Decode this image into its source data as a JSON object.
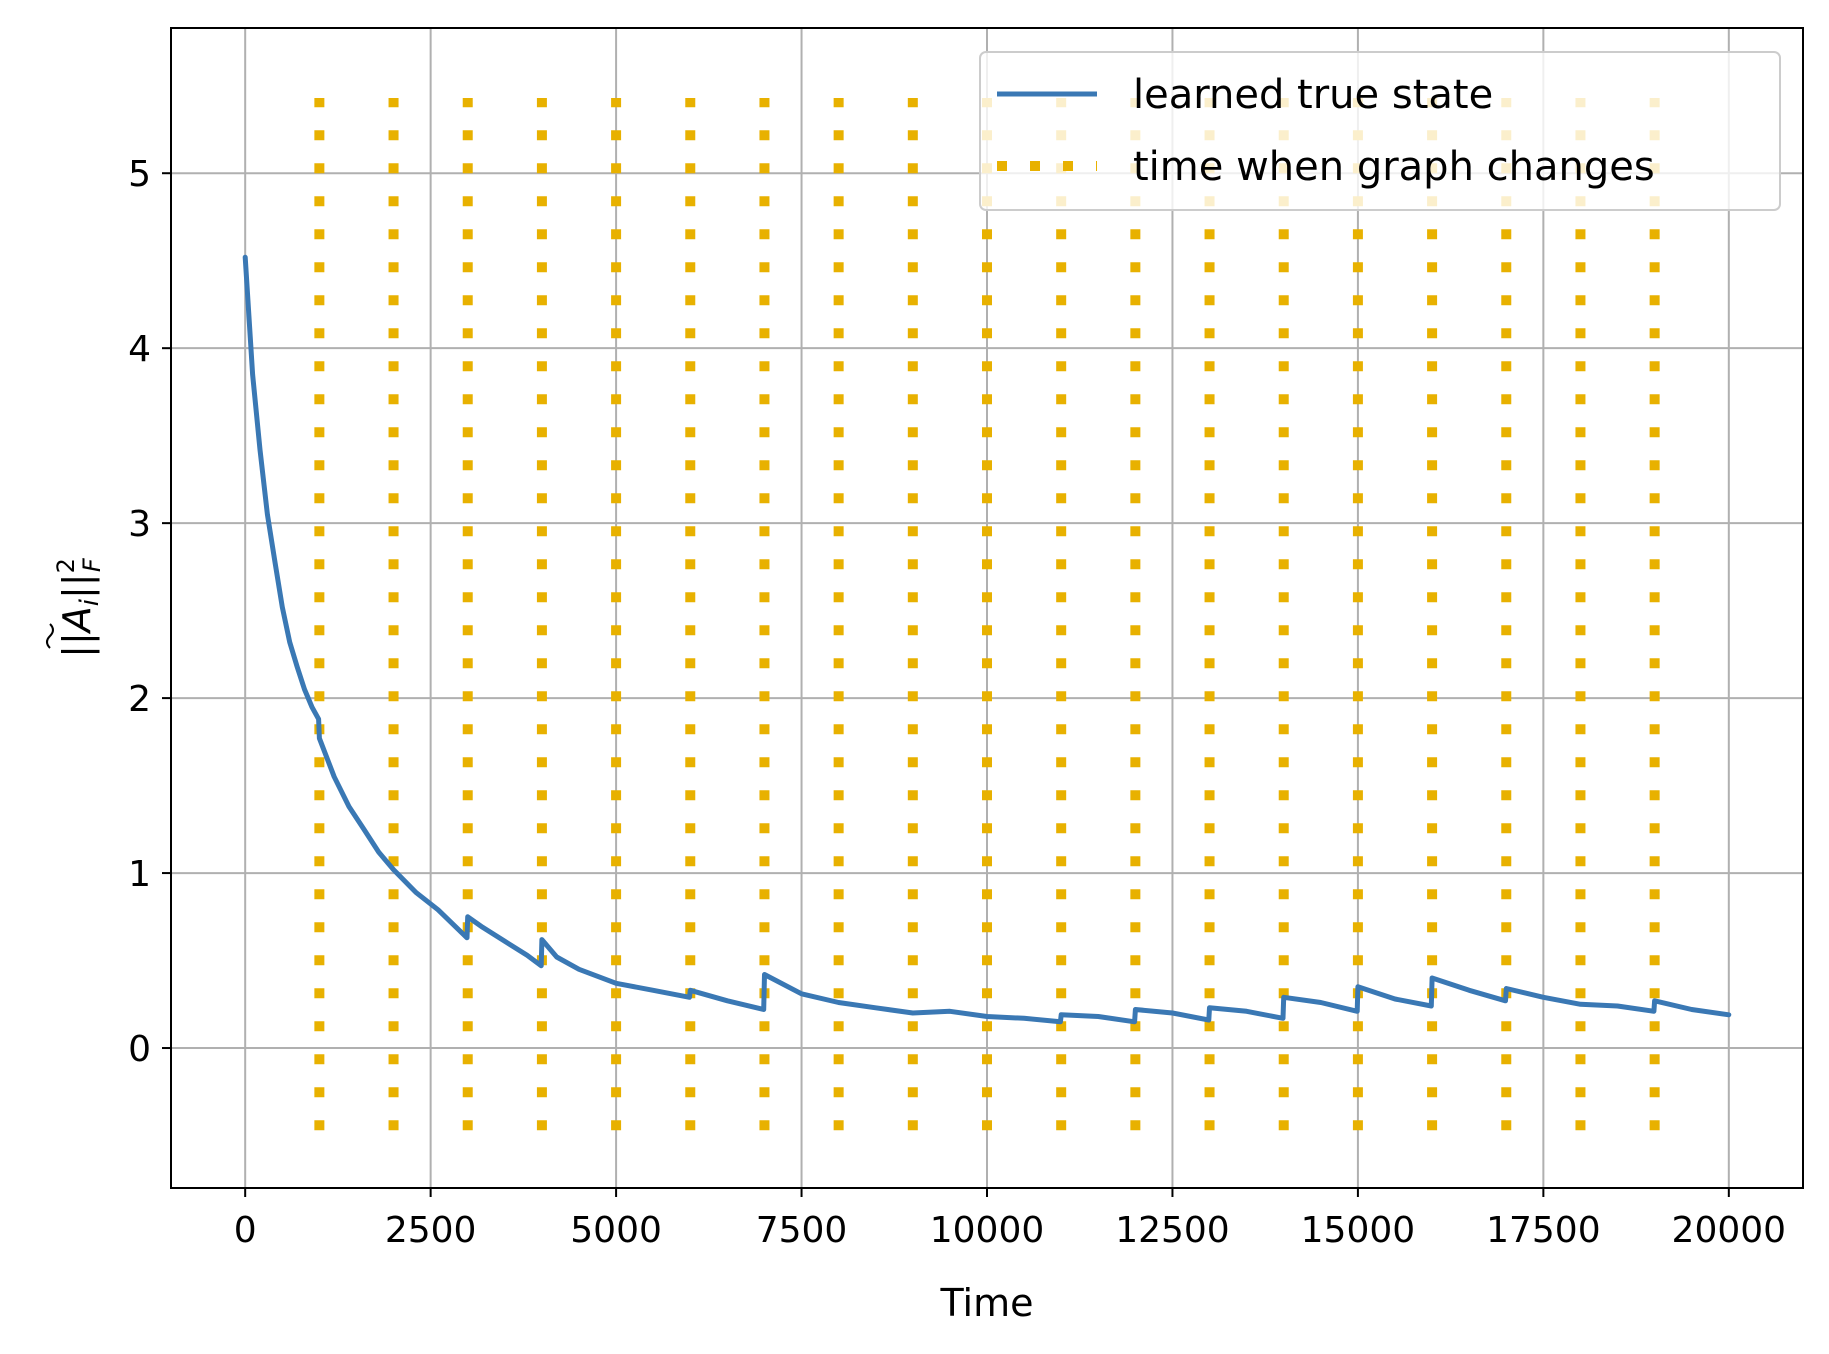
{
  "chart_data": {
    "type": "line",
    "xlabel": "Time",
    "ylabel_parts": {
      "base": "||",
      "var": "A",
      "sub": "i",
      "mid": "||",
      "sup": "2",
      "sub2": "F"
    },
    "xlim": [
      -1000,
      21000
    ],
    "ylim": [
      -0.8,
      5.83
    ],
    "xticks": [
      0,
      2500,
      5000,
      7500,
      10000,
      12500,
      15000,
      17500,
      20000
    ],
    "xtick_labels": [
      "0",
      "2500",
      "5000",
      "7500",
      "10000",
      "12500",
      "15000",
      "17500",
      "20000"
    ],
    "yticks": [
      0,
      1,
      2,
      3,
      4,
      5
    ],
    "ytick_labels": [
      "0",
      "1",
      "2",
      "3",
      "4",
      "5"
    ],
    "grid": true,
    "legend_position": "top-right",
    "colors": {
      "line": "#3a78b4",
      "changes": "#e8b100",
      "grid": "#b0b0b0"
    },
    "series": [
      {
        "name": "learned true state",
        "style": "solid",
        "x": [
          0,
          100,
          200,
          300,
          400,
          500,
          600,
          700,
          800,
          900,
          990,
          1000,
          1200,
          1400,
          1600,
          1800,
          2000,
          2300,
          2600,
          2990,
          3000,
          3200,
          3500,
          3800,
          3990,
          4000,
          4200,
          4500,
          5000,
          5500,
          5990,
          6000,
          6500,
          6990,
          7000,
          7500,
          8000,
          8500,
          9000,
          9500,
          10000,
          10500,
          10990,
          11000,
          11500,
          11990,
          12000,
          12500,
          12990,
          13000,
          13500,
          13990,
          14000,
          14500,
          14990,
          15000,
          15500,
          15990,
          16000,
          16500,
          16990,
          17000,
          17500,
          18000,
          18500,
          18990,
          19000,
          19500,
          20000
        ],
        "y": [
          4.52,
          3.85,
          3.42,
          3.05,
          2.78,
          2.52,
          2.32,
          2.18,
          2.05,
          1.95,
          1.88,
          1.77,
          1.55,
          1.38,
          1.25,
          1.12,
          1.02,
          0.89,
          0.79,
          0.63,
          0.75,
          0.69,
          0.61,
          0.53,
          0.47,
          0.62,
          0.52,
          0.45,
          0.37,
          0.33,
          0.29,
          0.33,
          0.27,
          0.22,
          0.42,
          0.31,
          0.26,
          0.23,
          0.2,
          0.21,
          0.18,
          0.17,
          0.15,
          0.19,
          0.18,
          0.15,
          0.22,
          0.2,
          0.16,
          0.23,
          0.21,
          0.17,
          0.29,
          0.26,
          0.21,
          0.35,
          0.28,
          0.24,
          0.4,
          0.33,
          0.27,
          0.34,
          0.29,
          0.25,
          0.24,
          0.21,
          0.27,
          0.22,
          0.19
        ]
      },
      {
        "name": "time when graph changes",
        "style": "dotted",
        "x": [
          1000,
          2000,
          3000,
          4000,
          5000,
          6000,
          7000,
          8000,
          9000,
          10000,
          11000,
          12000,
          13000,
          14000,
          15000,
          16000,
          17000,
          18000,
          19000
        ],
        "y_range": [
          -0.47,
          5.43
        ]
      }
    ]
  }
}
